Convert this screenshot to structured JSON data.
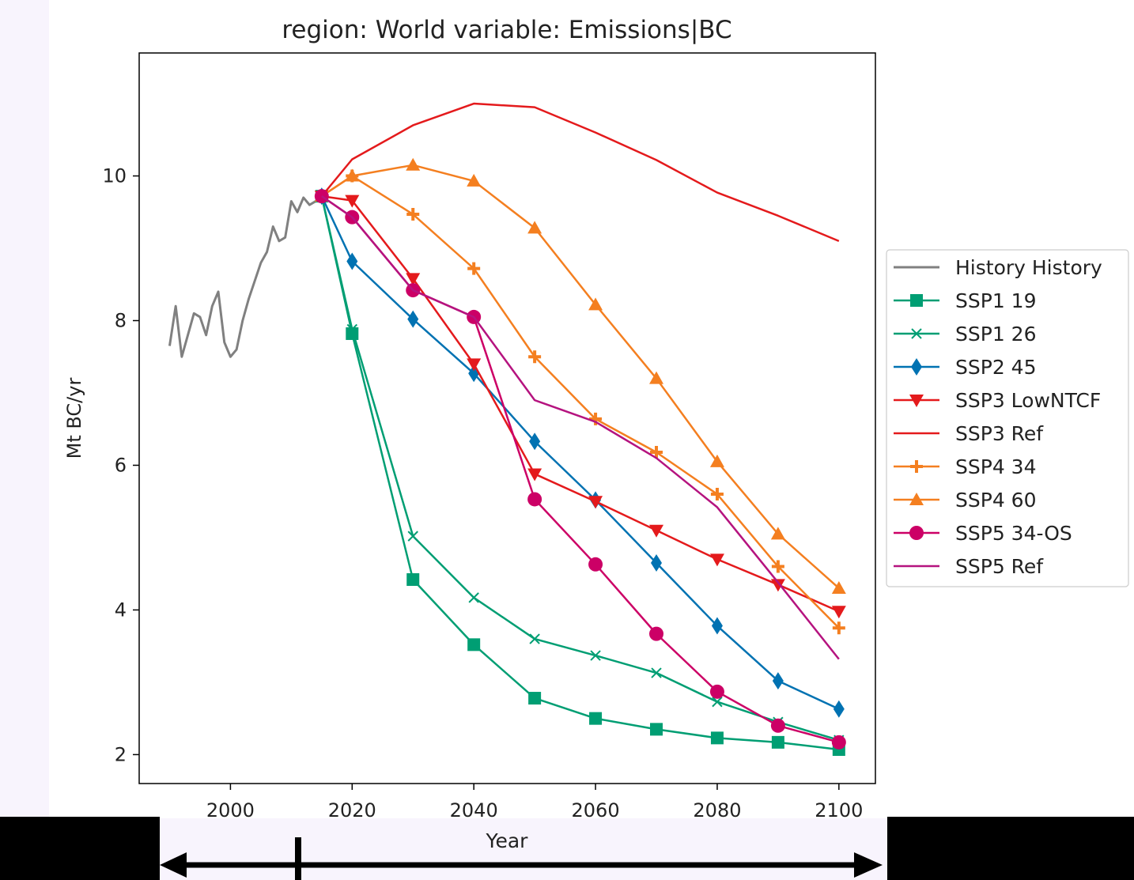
{
  "chart_data": {
    "type": "line",
    "title": "region: World variable: Emissions|BC",
    "xlabel": "Year",
    "ylabel": "Mt BC/yr",
    "xlim": [
      1985,
      2106
    ],
    "ylim": [
      1.6,
      11.7
    ],
    "xticks": [
      2000,
      2020,
      2040,
      2060,
      2080,
      2100
    ],
    "yticks": [
      2,
      4,
      6,
      8,
      10
    ],
    "grid": false,
    "legend_position": "right",
    "series": [
      {
        "name": "History History",
        "color": "#808080",
        "marker": "none",
        "x": [
          1990,
          1991,
          1992,
          1993,
          1994,
          1995,
          1996,
          1997,
          1998,
          1999,
          2000,
          2001,
          2002,
          2003,
          2004,
          2005,
          2006,
          2007,
          2008,
          2009,
          2010,
          2011,
          2012,
          2013,
          2014,
          2015
        ],
        "y": [
          7.65,
          8.2,
          7.5,
          7.8,
          8.1,
          8.05,
          7.8,
          8.2,
          8.4,
          7.7,
          7.5,
          7.6,
          8.0,
          8.3,
          8.55,
          8.8,
          8.95,
          9.3,
          9.1,
          9.15,
          9.65,
          9.5,
          9.7,
          9.6,
          9.65,
          9.72
        ]
      },
      {
        "name": "SSP1 19",
        "color": "#009e73",
        "marker": "square",
        "x": [
          2015,
          2020,
          2030,
          2040,
          2050,
          2060,
          2070,
          2080,
          2090,
          2100
        ],
        "y": [
          9.72,
          7.82,
          4.42,
          3.52,
          2.78,
          2.5,
          2.35,
          2.23,
          2.17,
          2.07
        ]
      },
      {
        "name": "SSP1 26",
        "color": "#009e73",
        "marker": "x",
        "x": [
          2015,
          2020,
          2030,
          2040,
          2050,
          2060,
          2070,
          2080,
          2090,
          2100
        ],
        "y": [
          9.72,
          7.88,
          5.02,
          4.17,
          3.6,
          3.37,
          3.13,
          2.73,
          2.45,
          2.2
        ]
      },
      {
        "name": "SSP2 45",
        "color": "#0072b2",
        "marker": "diamond",
        "x": [
          2015,
          2020,
          2030,
          2040,
          2050,
          2060,
          2070,
          2080,
          2090,
          2100
        ],
        "y": [
          9.72,
          8.82,
          8.02,
          7.27,
          6.33,
          5.52,
          4.65,
          3.78,
          3.02,
          2.63
        ]
      },
      {
        "name": "SSP3 LowNTCF",
        "color": "#e41a1c",
        "marker": "triangle-down",
        "x": [
          2015,
          2020,
          2030,
          2040,
          2050,
          2060,
          2070,
          2080,
          2090,
          2100
        ],
        "y": [
          9.72,
          9.66,
          8.58,
          7.4,
          5.88,
          5.5,
          5.1,
          4.7,
          4.35,
          3.98
        ]
      },
      {
        "name": "SSP3 Ref",
        "color": "#e41a1c",
        "marker": "none",
        "x": [
          2015,
          2020,
          2030,
          2040,
          2050,
          2060,
          2070,
          2080,
          2090,
          2100
        ],
        "y": [
          9.72,
          10.23,
          10.7,
          11.0,
          10.95,
          10.6,
          10.22,
          9.77,
          9.45,
          9.1
        ]
      },
      {
        "name": "SSP4 34",
        "color": "#f47f20",
        "marker": "plus",
        "x": [
          2015,
          2020,
          2030,
          2040,
          2050,
          2060,
          2070,
          2080,
          2090,
          2100
        ],
        "y": [
          9.72,
          10.0,
          9.47,
          8.72,
          7.5,
          6.64,
          6.18,
          5.6,
          4.6,
          3.75
        ]
      },
      {
        "name": "SSP4 60",
        "color": "#f47f20",
        "marker": "triangle-up",
        "x": [
          2015,
          2020,
          2030,
          2040,
          2050,
          2060,
          2070,
          2080,
          2090,
          2100
        ],
        "y": [
          9.72,
          10.0,
          10.15,
          9.93,
          9.28,
          8.22,
          7.2,
          6.05,
          5.05,
          4.3
        ]
      },
      {
        "name": "SSP5 34-OS",
        "color": "#cc0066",
        "marker": "circle",
        "x": [
          2015,
          2020,
          2030,
          2040,
          2050,
          2060,
          2070,
          2080,
          2090,
          2100
        ],
        "y": [
          9.72,
          9.43,
          8.42,
          8.05,
          5.53,
          4.63,
          3.67,
          2.87,
          2.4,
          2.17
        ]
      },
      {
        "name": "SSP5 Ref",
        "color": "#b5137f",
        "marker": "none",
        "x": [
          2015,
          2020,
          2030,
          2040,
          2050,
          2060,
          2070,
          2080,
          2090,
          2100
        ],
        "y": [
          9.72,
          9.43,
          8.42,
          8.05,
          6.9,
          6.6,
          6.1,
          5.42,
          4.38,
          3.32
        ]
      }
    ]
  }
}
